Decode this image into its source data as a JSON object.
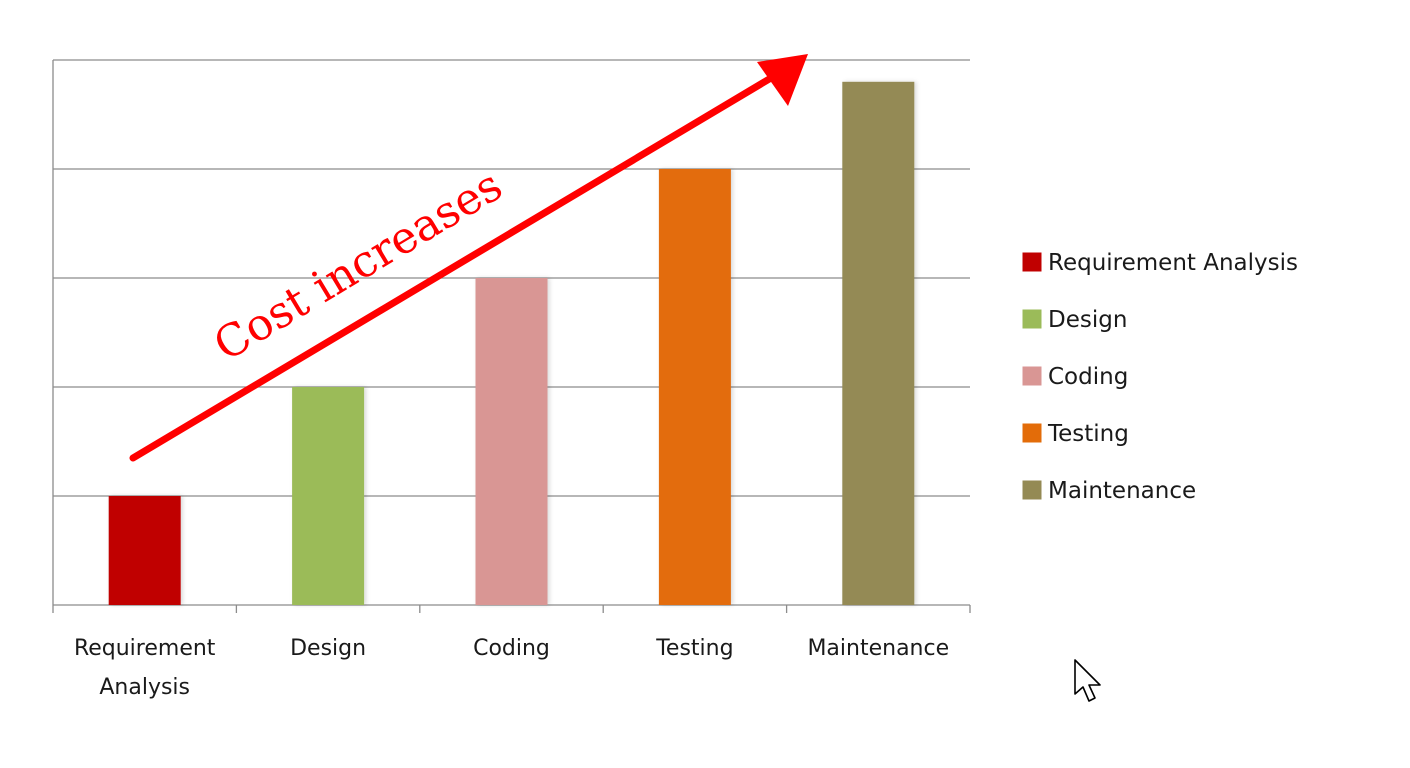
{
  "chart_data": {
    "type": "bar",
    "categories": [
      "Requirement Analysis",
      "Design",
      "Coding",
      "Testing",
      "Maintenance"
    ],
    "category_lines": [
      [
        "Requirement",
        "Analysis"
      ],
      [
        "Design"
      ],
      [
        "Coding"
      ],
      [
        "Testing"
      ],
      [
        "Maintenance"
      ]
    ],
    "values": [
      1,
      2,
      3,
      4,
      4.8
    ],
    "colors": [
      "#c00000",
      "#9bbb59",
      "#d99694",
      "#e36c09",
      "#948a54"
    ],
    "ylim": [
      0,
      5
    ],
    "y_major_step": 1,
    "grid": true,
    "ytick_labels_shown": false,
    "legend": {
      "placement": "right",
      "entries": [
        "Requirement Analysis",
        "Design",
        "Coding",
        "Testing",
        "Maintenance"
      ]
    },
    "annotation": {
      "text": "Cost increases",
      "arrow_color": "#ff0000",
      "text_color": "#ff0000"
    }
  },
  "cursor_icon": "mouse-pointer-icon"
}
